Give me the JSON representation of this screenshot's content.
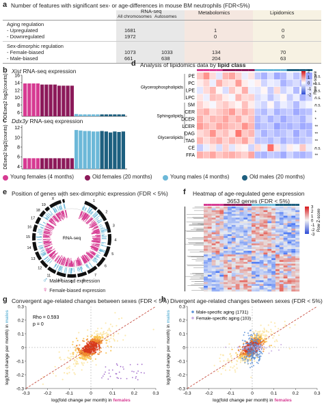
{
  "colors": {
    "young_female": "#d63b92",
    "old_female": "#8c1a5a",
    "young_male": "#6cb8d8",
    "old_male": "#1d5f7f",
    "rnaseq_header": "#d9d9d9",
    "metab_header": "#f0e0d8",
    "lipid_header": "#f5f0e0"
  },
  "panel_a": {
    "letter": "a",
    "title": "Number of features with significant sex- or age-differences in mouse BM neutrophils (FDR<5%)",
    "col_rnaseq": "RNA-seq",
    "col_all": "All chromosomes",
    "col_auto": "Autosomes",
    "col_metab": "Metabolomics",
    "col_lipid": "Lipidomics",
    "group1": "Aging regulation",
    "rows1": [
      {
        "label": " - Upregulated",
        "all": "1681",
        "auto": "",
        "metab": "1",
        "lipid": "0"
      },
      {
        "label": " - Downregulated",
        "all": "1972",
        "auto": "",
        "metab": "0",
        "lipid": "0"
      }
    ],
    "group2": "Sex-dimorphic regulation",
    "rows2": [
      {
        "label": " - Female-biased",
        "all": "1073",
        "auto": "1033",
        "metab": "134",
        "lipid": "70"
      },
      {
        "label": " - Male-biased",
        "all": "661",
        "auto": "638",
        "metab": "204",
        "lipid": "63"
      }
    ]
  },
  "panel_b": {
    "letter": "b",
    "title_gene": "Xist",
    "title_rest": " RNA-seq expression",
    "ylabel": "DEseq2 log2(counts)",
    "yticks": [
      "16",
      "14",
      "12",
      "10",
      "8",
      "6"
    ],
    "values": [
      13.8,
      13.8,
      13.8,
      13.8,
      13.5,
      13.5,
      13.5,
      13.5,
      13.2,
      13.2,
      13.2,
      13.2,
      5.6,
      5.5,
      5.5,
      5.5,
      5.5,
      5.5,
      5.5,
      5.5,
      5.5,
      5.5,
      5.5,
      5.5
    ],
    "groups": [
      "yf",
      "yf",
      "yf",
      "yf",
      "of",
      "of",
      "of",
      "of",
      "of",
      "of",
      "of",
      "of",
      "ym",
      "ym",
      "ym",
      "ym",
      "ym",
      "ym",
      "om",
      "om",
      "om",
      "om",
      "om",
      "om"
    ],
    "ymin": 5,
    "ymax": 16
  },
  "panel_c": {
    "letter": "c",
    "title_gene": "Ddx3y",
    "title_rest": " RNA-seq expression",
    "ylabel": "DEseq2 log2(counts)",
    "yticks": [
      "12",
      "10",
      "8",
      "6",
      "4"
    ],
    "values": [
      5.7,
      5.7,
      5.7,
      5.7,
      5.7,
      5.7,
      5.7,
      5.7,
      5.7,
      5.7,
      5.7,
      5.7,
      11.5,
      11.4,
      11.3,
      11.3,
      11.2,
      11.2,
      11.3,
      11.2,
      11.0,
      11.2,
      11.1,
      11.2
    ],
    "groups": [
      "yf",
      "yf",
      "yf",
      "yf",
      "of",
      "of",
      "of",
      "of",
      "of",
      "of",
      "of",
      "of",
      "ym",
      "ym",
      "ym",
      "ym",
      "ym",
      "ym",
      "om",
      "om",
      "om",
      "om",
      "om",
      "om"
    ],
    "ymin": 3.5,
    "ymax": 12.5
  },
  "panel_d": {
    "letter": "d",
    "title": "Analysis of lipidomics data by ",
    "title_bold": "lipid class",
    "lipids": [
      "PE",
      "PC",
      "LPE",
      "LPC",
      "SM",
      "CER",
      "DCER",
      "LCER",
      "DAG",
      "TAG",
      "CE",
      "FFA"
    ],
    "classes": [
      "Glycerophospholipids",
      "Sphingolipids",
      "Glycerolipids"
    ],
    "sig": [
      "n.s.",
      "n.s.",
      "n.s.",
      "n.s.",
      "n.s.",
      "*",
      "*",
      "**",
      "**",
      "**",
      "n.s.",
      "**"
    ],
    "legend_title": "Row Z-score",
    "legend_ticks": [
      "2",
      "1",
      "0",
      "-1",
      "-2"
    ],
    "heat": [
      [
        0.6,
        1.2,
        0.4,
        -0.3,
        0.8,
        1.0,
        0.5,
        -0.2,
        0.3,
        -0.6,
        -0.9,
        -0.4,
        -1.0,
        -0.8,
        -0.3,
        -0.7,
        -0.5,
        -1.1
      ],
      [
        0.2,
        0.5,
        -0.2,
        0.9,
        0.4,
        0.3,
        1.1,
        0.2,
        -0.1,
        0.2,
        -0.5,
        -0.2,
        -0.3,
        -0.9,
        -0.6,
        -0.4,
        -0.8,
        -0.6
      ],
      [
        -0.3,
        0.4,
        0.8,
        0.1,
        -0.4,
        0.6,
        0.2,
        0.9,
        -0.2,
        -0.3,
        0.1,
        -0.6,
        0.4,
        -0.5,
        -0.2,
        -0.8,
        -0.1,
        -0.3
      ],
      [
        0.3,
        -0.2,
        0.7,
        0.6,
        0.2,
        -0.1,
        0.8,
        0.4,
        0.5,
        -0.4,
        -0.2,
        -0.7,
        -0.3,
        0.1,
        -0.6,
        -0.2,
        -0.9,
        -0.5
      ],
      [
        0.5,
        0.2,
        -0.1,
        0.4,
        0.6,
        0.3,
        0.1,
        0.7,
        0.2,
        -0.3,
        -0.5,
        0.1,
        -0.6,
        -0.2,
        -0.4,
        -0.8,
        -0.3,
        -0.1
      ],
      [
        0.7,
        0.9,
        0.4,
        0.6,
        0.8,
        1.1,
        0.5,
        0.9,
        0.6,
        -0.6,
        -0.8,
        -0.4,
        -0.9,
        -0.7,
        -0.6,
        -1.0,
        -0.8,
        -0.7
      ],
      [
        0.9,
        0.5,
        0.8,
        0.7,
        1.0,
        0.6,
        0.9,
        0.4,
        0.7,
        -0.8,
        -0.5,
        -0.9,
        -0.6,
        -1.0,
        -0.7,
        -0.6,
        -0.9,
        -0.4
      ],
      [
        1.1,
        0.8,
        0.6,
        1.0,
        0.9,
        0.7,
        0.6,
        1.2,
        0.8,
        -0.9,
        -0.7,
        -0.6,
        -1.1,
        -0.8,
        -0.9,
        -0.7,
        -1.0,
        -0.9
      ],
      [
        0.4,
        0.6,
        1.2,
        0.5,
        0.7,
        0.3,
        1.5,
        0.6,
        0.8,
        -0.5,
        -0.9,
        -0.6,
        -0.8,
        -0.7,
        -0.5,
        -1.0,
        -0.6,
        -0.8
      ],
      [
        0.8,
        0.4,
        0.7,
        0.9,
        0.5,
        0.8,
        0.6,
        1.0,
        0.4,
        -0.7,
        -0.6,
        -0.8,
        -0.5,
        -0.9,
        -0.6,
        -0.8,
        -0.7,
        -0.5
      ],
      [
        -0.6,
        -0.2,
        0.3,
        -0.4,
        0.5,
        -0.3,
        0.2,
        0.1,
        -0.5,
        0.4,
        -0.2,
        1.6,
        0.3,
        -0.4,
        0.2,
        -0.1,
        0.6,
        -0.2
      ],
      [
        0.9,
        0.7,
        1.0,
        0.6,
        0.8,
        0.9,
        0.7,
        0.5,
        1.0,
        -0.8,
        -0.9,
        -0.6,
        -0.7,
        -1.0,
        -0.5,
        -0.8,
        -0.9,
        -0.7
      ]
    ]
  },
  "legend": [
    {
      "label": "Young females (4 months)",
      "group": "yf"
    },
    {
      "label": "Old females (20 months)",
      "group": "of"
    },
    {
      "label": "Young males (4 months)",
      "group": "ym"
    },
    {
      "label": "Old males (20 months)",
      "group": "om"
    }
  ],
  "panel_e": {
    "letter": "e",
    "title": "Position of genes with sex-dimorphic expression (FDR < 5%)",
    "center_label": "RNA-seq",
    "chromosomes": [
      "1",
      "2",
      "3",
      "4",
      "5",
      "6",
      "7",
      "8",
      "9",
      "10",
      "11",
      "12",
      "13",
      "14",
      "15",
      "16",
      "17",
      "18",
      "19",
      "X",
      "Y"
    ],
    "male_label": "Male-biased expression",
    "female_label": "Female-biased expression"
  },
  "panel_f": {
    "letter": "f",
    "title": "Heatmap of age-regulated gene expression",
    "subtitle": "3653 genes (FDR < 5%)",
    "legend_title": "Row Z-score",
    "legend_ticks": [
      "3",
      "2",
      "1",
      "0",
      "-1",
      "-2",
      "-3"
    ]
  },
  "panel_g": {
    "letter": "g",
    "title": "Convergent age-related changes between sexes (FDR < 5%)",
    "ylabel_pre": "log",
    "ylabel": "(fold change per month) in ",
    "ylabel_sex": "males",
    "xlabel_pre": "log",
    "xlabel": "(fold change per month) in ",
    "xlabel_sex": "females",
    "rho": "Rho = 0.593",
    "pval": "p = 0",
    "ticks": [
      "-0.3",
      "-0.2",
      "-0.1",
      "0",
      "0.1",
      "0.2",
      "0.3"
    ]
  },
  "panel_h": {
    "letter": "h",
    "title": "Divergent age-related changes between sexes (FDR < 5%)",
    "ylabel_pre": "log",
    "ylabel": "(fold change per month) in ",
    "ylabel_sex": "males",
    "xlabel_pre": "log",
    "xlabel": "(fold change per month) in ",
    "xlabel_sex": "females",
    "leg1": "Male-specific aging (1731)",
    "leg2": "Female-specific aging (103)",
    "ticks": [
      "-0.3",
      "-0.2",
      "-0.1",
      "0",
      "0.1",
      "0.2",
      "0.3"
    ]
  },
  "chart_data": [
    {
      "type": "bar",
      "title": "Xist RNA-seq expression",
      "ylabel": "DEseq2 log2(counts)",
      "ylim": [
        5,
        16
      ],
      "values": [
        13.8,
        13.8,
        13.8,
        13.8,
        13.5,
        13.5,
        13.5,
        13.5,
        13.2,
        13.2,
        13.2,
        13.2,
        5.6,
        5.5,
        5.5,
        5.5,
        5.5,
        5.5,
        5.5,
        5.5,
        5.5,
        5.5,
        5.5,
        5.5
      ]
    },
    {
      "type": "bar",
      "title": "Ddx3y RNA-seq expression",
      "ylabel": "DEseq2 log2(counts)",
      "ylim": [
        3.5,
        12.5
      ],
      "values": [
        5.7,
        5.7,
        5.7,
        5.7,
        5.7,
        5.7,
        5.7,
        5.7,
        5.7,
        5.7,
        5.7,
        5.7,
        11.5,
        11.4,
        11.3,
        11.3,
        11.2,
        11.2,
        11.3,
        11.2,
        11.0,
        11.2,
        11.1,
        11.2
      ]
    },
    {
      "type": "heatmap",
      "title": "Analysis of lipidomics data by lipid class",
      "rows": [
        "PE",
        "PC",
        "LPE",
        "LPC",
        "SM",
        "CER",
        "DCER",
        "LCER",
        "DAG",
        "TAG",
        "CE",
        "FFA"
      ]
    },
    {
      "type": "scatter",
      "title": "Convergent age-related changes between sexes (FDR < 5%)",
      "xlim": [
        -0.3,
        0.3
      ],
      "ylim": [
        -0.3,
        0.3
      ]
    },
    {
      "type": "scatter",
      "title": "Divergent age-related changes between sexes (FDR < 5%)",
      "xlim": [
        -0.3,
        0.3
      ],
      "ylim": [
        -0.3,
        0.3
      ],
      "series": [
        {
          "name": "Male-specific aging (1731)"
        },
        {
          "name": "Female-specific aging (103)"
        }
      ]
    }
  ]
}
